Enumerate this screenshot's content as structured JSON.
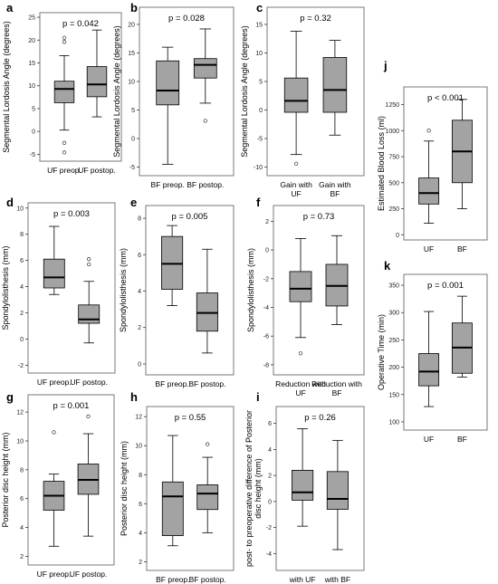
{
  "chart_data": [
    {
      "id": "a",
      "type": "box",
      "panel_label": "a",
      "annotation": "p = 0.042",
      "ylabel": "Segmental Lordosis Angle (degrees)",
      "ylim": [
        -6.5,
        26
      ],
      "yticks": [
        -5,
        0,
        5,
        10,
        15,
        20,
        25
      ],
      "categories": [
        "UF preop.",
        "UF postop."
      ],
      "boxes": [
        {
          "min": 0.3,
          "q1": 6.3,
          "median": 9.3,
          "q3": 11.0,
          "max": 16.6,
          "outliers": [
            20.5,
            19.6,
            -2.5,
            -4.6
          ]
        },
        {
          "min": 3.2,
          "q1": 7.6,
          "median": 10.3,
          "q3": 14.2,
          "max": 22.2,
          "outliers": []
        }
      ]
    },
    {
      "id": "b",
      "type": "box",
      "panel_label": "b",
      "annotation": "p = 0.028",
      "ylabel": "Segmental Lordosis Angle (degrees)",
      "ylim": [
        -6.5,
        23
      ],
      "yticks": [
        -5,
        0,
        5,
        10,
        15,
        20
      ],
      "categories": [
        "BF preop.",
        "BF postop."
      ],
      "boxes": [
        {
          "min": -4.5,
          "q1": 5.9,
          "median": 8.4,
          "q3": 13.6,
          "max": 16.0,
          "outliers": []
        },
        {
          "min": 6.2,
          "q1": 10.6,
          "median": 12.9,
          "q3": 14.0,
          "max": 19.2,
          "outliers": [
            3.1
          ]
        }
      ]
    },
    {
      "id": "c",
      "type": "box",
      "panel_label": "c",
      "annotation": "p = 0.32",
      "ylabel": "Segmental Lordosis Angle (degrees)",
      "ylim": [
        -11.5,
        18
      ],
      "yticks": [
        -10,
        -5,
        0,
        5,
        10,
        15
      ],
      "categories": [
        "Gain with UF",
        "Gain with BF"
      ],
      "boxes": [
        {
          "min": -7.8,
          "q1": -0.4,
          "median": 1.6,
          "q3": 5.6,
          "max": 13.8,
          "outliers": [
            -9.4
          ]
        },
        {
          "min": -4.4,
          "q1": -0.4,
          "median": 3.5,
          "q3": 9.2,
          "max": 12.2,
          "outliers": []
        }
      ]
    },
    {
      "id": "d",
      "type": "box",
      "panel_label": "d",
      "annotation": "p = 0.003",
      "ylabel": "Spondylolisthesis (mm)",
      "ylim": [
        -2.6,
        10.4
      ],
      "yticks": [
        -2,
        0,
        2,
        4,
        6,
        8,
        10
      ],
      "categories": [
        "UF preop.",
        "UF postop."
      ],
      "boxes": [
        {
          "min": 3.4,
          "q1": 3.9,
          "median": 4.7,
          "q3": 6.1,
          "max": 8.6,
          "outliers": []
        },
        {
          "min": -0.3,
          "q1": 1.2,
          "median": 1.5,
          "q3": 2.6,
          "max": 4.4,
          "outliers": [
            6.1,
            5.7
          ]
        }
      ]
    },
    {
      "id": "e",
      "type": "box",
      "panel_label": "e",
      "annotation": "p = 0.005",
      "ylabel": "Spondylolisthesis (mm)",
      "ylim": [
        -0.6,
        8.7
      ],
      "yticks": [
        0,
        2,
        4,
        6,
        8
      ],
      "categories": [
        "BF preop.",
        "BF postop."
      ],
      "boxes": [
        {
          "min": 3.2,
          "q1": 4.1,
          "median": 5.5,
          "q3": 7.0,
          "max": 7.6,
          "outliers": []
        },
        {
          "min": 0.6,
          "q1": 1.8,
          "median": 2.8,
          "q3": 3.9,
          "max": 6.3,
          "outliers": []
        }
      ]
    },
    {
      "id": "f",
      "type": "box",
      "panel_label": "f",
      "annotation": "p = 0.73",
      "ylabel": "Spondylolisthesis (mm)",
      "ylim": [
        -8.7,
        3.1
      ],
      "yticks": [
        -8,
        -6,
        -4,
        -2,
        0,
        2
      ],
      "categories": [
        "Reduction with UF",
        "Reduction with BF"
      ],
      "boxes": [
        {
          "min": -6.1,
          "q1": -3.6,
          "median": -2.7,
          "q3": -1.5,
          "max": 0.8,
          "outliers": [
            -7.2
          ]
        },
        {
          "min": -5.2,
          "q1": -3.9,
          "median": -2.5,
          "q3": -1.0,
          "max": 1.0,
          "outliers": []
        }
      ]
    },
    {
      "id": "g",
      "type": "box",
      "panel_label": "g",
      "annotation": "p = 0.001",
      "ylabel": "Posterior disc height (mm)",
      "ylim": [
        1.4,
        13.2
      ],
      "yticks": [
        2,
        4,
        6,
        8,
        10,
        12
      ],
      "categories": [
        "UF preop.",
        "UF postop."
      ],
      "boxes": [
        {
          "min": 2.7,
          "q1": 5.2,
          "median": 6.2,
          "q3": 7.2,
          "max": 7.7,
          "outliers": [
            10.6
          ]
        },
        {
          "min": 3.4,
          "q1": 6.3,
          "median": 7.3,
          "q3": 8.4,
          "max": 10.5,
          "outliers": [
            11.7
          ]
        }
      ]
    },
    {
      "id": "h",
      "type": "box",
      "panel_label": "h",
      "annotation": "p = 0.55",
      "ylabel": "Posterior disc height (mm)",
      "ylim": [
        1.4,
        12.7
      ],
      "yticks": [
        2,
        4,
        6,
        8,
        10,
        12
      ],
      "categories": [
        "BF preop.",
        "BF postop."
      ],
      "boxes": [
        {
          "min": 3.1,
          "q1": 3.8,
          "median": 6.5,
          "q3": 7.5,
          "max": 10.7,
          "outliers": []
        },
        {
          "min": 4.0,
          "q1": 5.6,
          "median": 6.7,
          "q3": 7.3,
          "max": 9.2,
          "outliers": [
            10.1
          ]
        }
      ]
    },
    {
      "id": "i",
      "type": "box",
      "panel_label": "i",
      "annotation": "p = 0.26",
      "ylabel": "post- to preoperative difference of Posterior disc height (mm)",
      "ylim": [
        -5.3,
        7.3
      ],
      "yticks": [
        -4,
        -2,
        0,
        2,
        4,
        6
      ],
      "categories": [
        "with UF",
        "with BF"
      ],
      "boxes": [
        {
          "min": -1.9,
          "q1": 0.1,
          "median": 0.7,
          "q3": 2.4,
          "max": 5.6,
          "outliers": []
        },
        {
          "min": -3.7,
          "q1": -0.6,
          "median": 0.2,
          "q3": 2.3,
          "max": 4.7,
          "outliers": []
        }
      ]
    },
    {
      "id": "j",
      "type": "box",
      "panel_label": "j",
      "annotation": "p < 0.001",
      "ylabel": "Estimated Blood Loss (ml)",
      "ylim": [
        -50,
        1420
      ],
      "yticks": [
        0,
        250,
        500,
        750,
        1000,
        1250
      ],
      "categories": [
        "UF",
        "BF"
      ],
      "boxes": [
        {
          "min": 110,
          "q1": 295,
          "median": 400,
          "q3": 545,
          "max": 900,
          "outliers": [
            1000
          ]
        },
        {
          "min": 250,
          "q1": 500,
          "median": 800,
          "q3": 1100,
          "max": 1300,
          "outliers": []
        }
      ]
    },
    {
      "id": "k",
      "type": "box",
      "panel_label": "k",
      "annotation": "p = 0.001",
      "ylabel": "Operative Time (min)",
      "ylim": [
        85,
        370
      ],
      "yticks": [
        100,
        150,
        200,
        250,
        300,
        350
      ],
      "categories": [
        "UF",
        "BF"
      ],
      "boxes": [
        {
          "min": 128,
          "q1": 166,
          "median": 192,
          "q3": 225,
          "max": 302,
          "outliers": []
        },
        {
          "min": 182,
          "q1": 189,
          "median": 236,
          "q3": 281,
          "max": 330,
          "outliers": []
        }
      ]
    }
  ],
  "colors": {
    "box_fill": "#a3a3a3",
    "line": "#000000",
    "frame": "#7a7a7a"
  }
}
